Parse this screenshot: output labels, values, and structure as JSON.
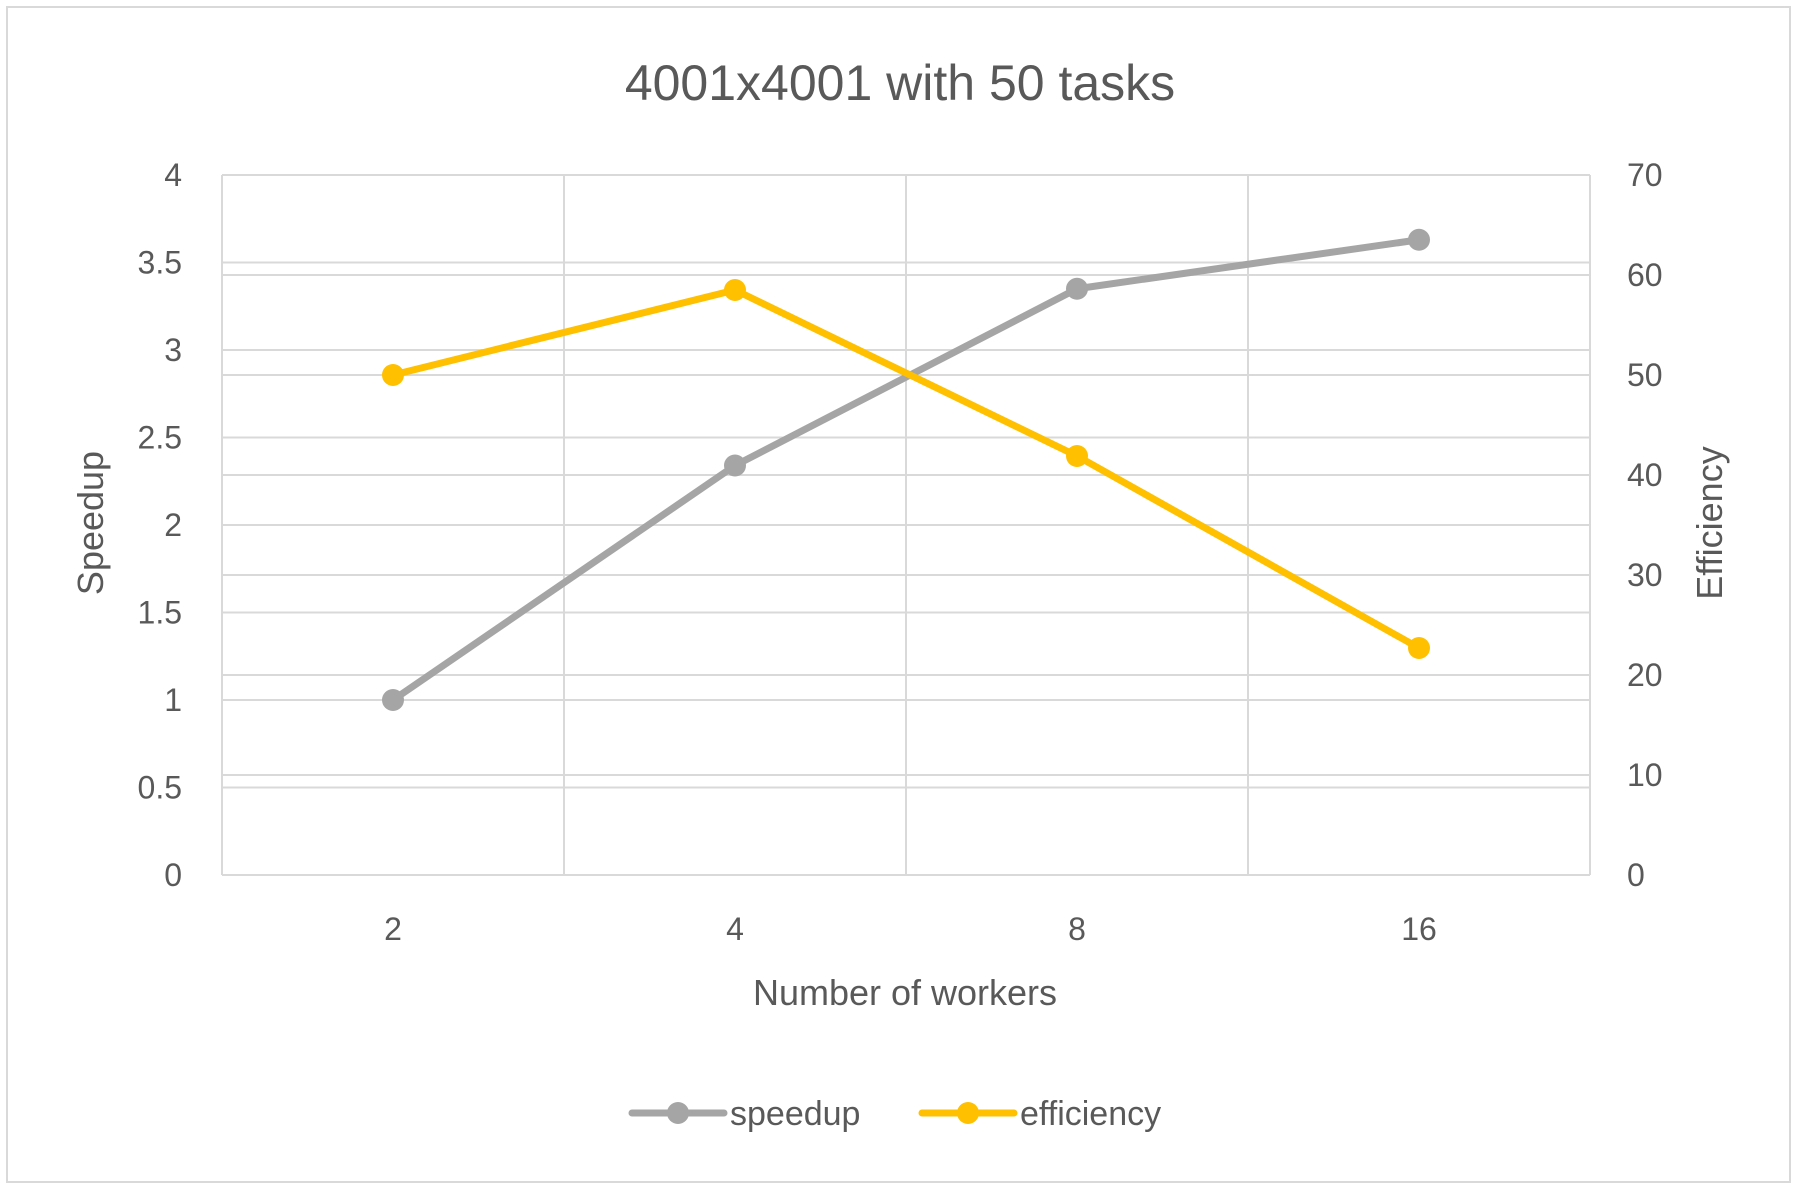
{
  "chart_data": {
    "type": "line",
    "title": "4001x4001 with 50 tasks",
    "xlabel": "Number of workers",
    "ylabel": "Speedup",
    "y2label": "Efficiency",
    "categories": [
      "2",
      "4",
      "8",
      "16"
    ],
    "ylim": [
      0,
      4
    ],
    "y_ticks": [
      "0",
      "0.5",
      "1",
      "1.5",
      "2",
      "2.5",
      "3",
      "3.5",
      "4"
    ],
    "y2lim": [
      0,
      70
    ],
    "y2_ticks": [
      "0",
      "10",
      "20",
      "30",
      "40",
      "50",
      "60",
      "70"
    ],
    "grid": true,
    "legend_position": "bottom",
    "series": [
      {
        "name": "speedup",
        "axis": "left",
        "color": "#a5a5a5",
        "values": [
          1.0,
          2.34,
          3.35,
          3.63
        ]
      },
      {
        "name": "efficiency",
        "axis": "right",
        "color": "#ffc000",
        "values": [
          50,
          58.5,
          41.9,
          22.7
        ]
      }
    ]
  }
}
